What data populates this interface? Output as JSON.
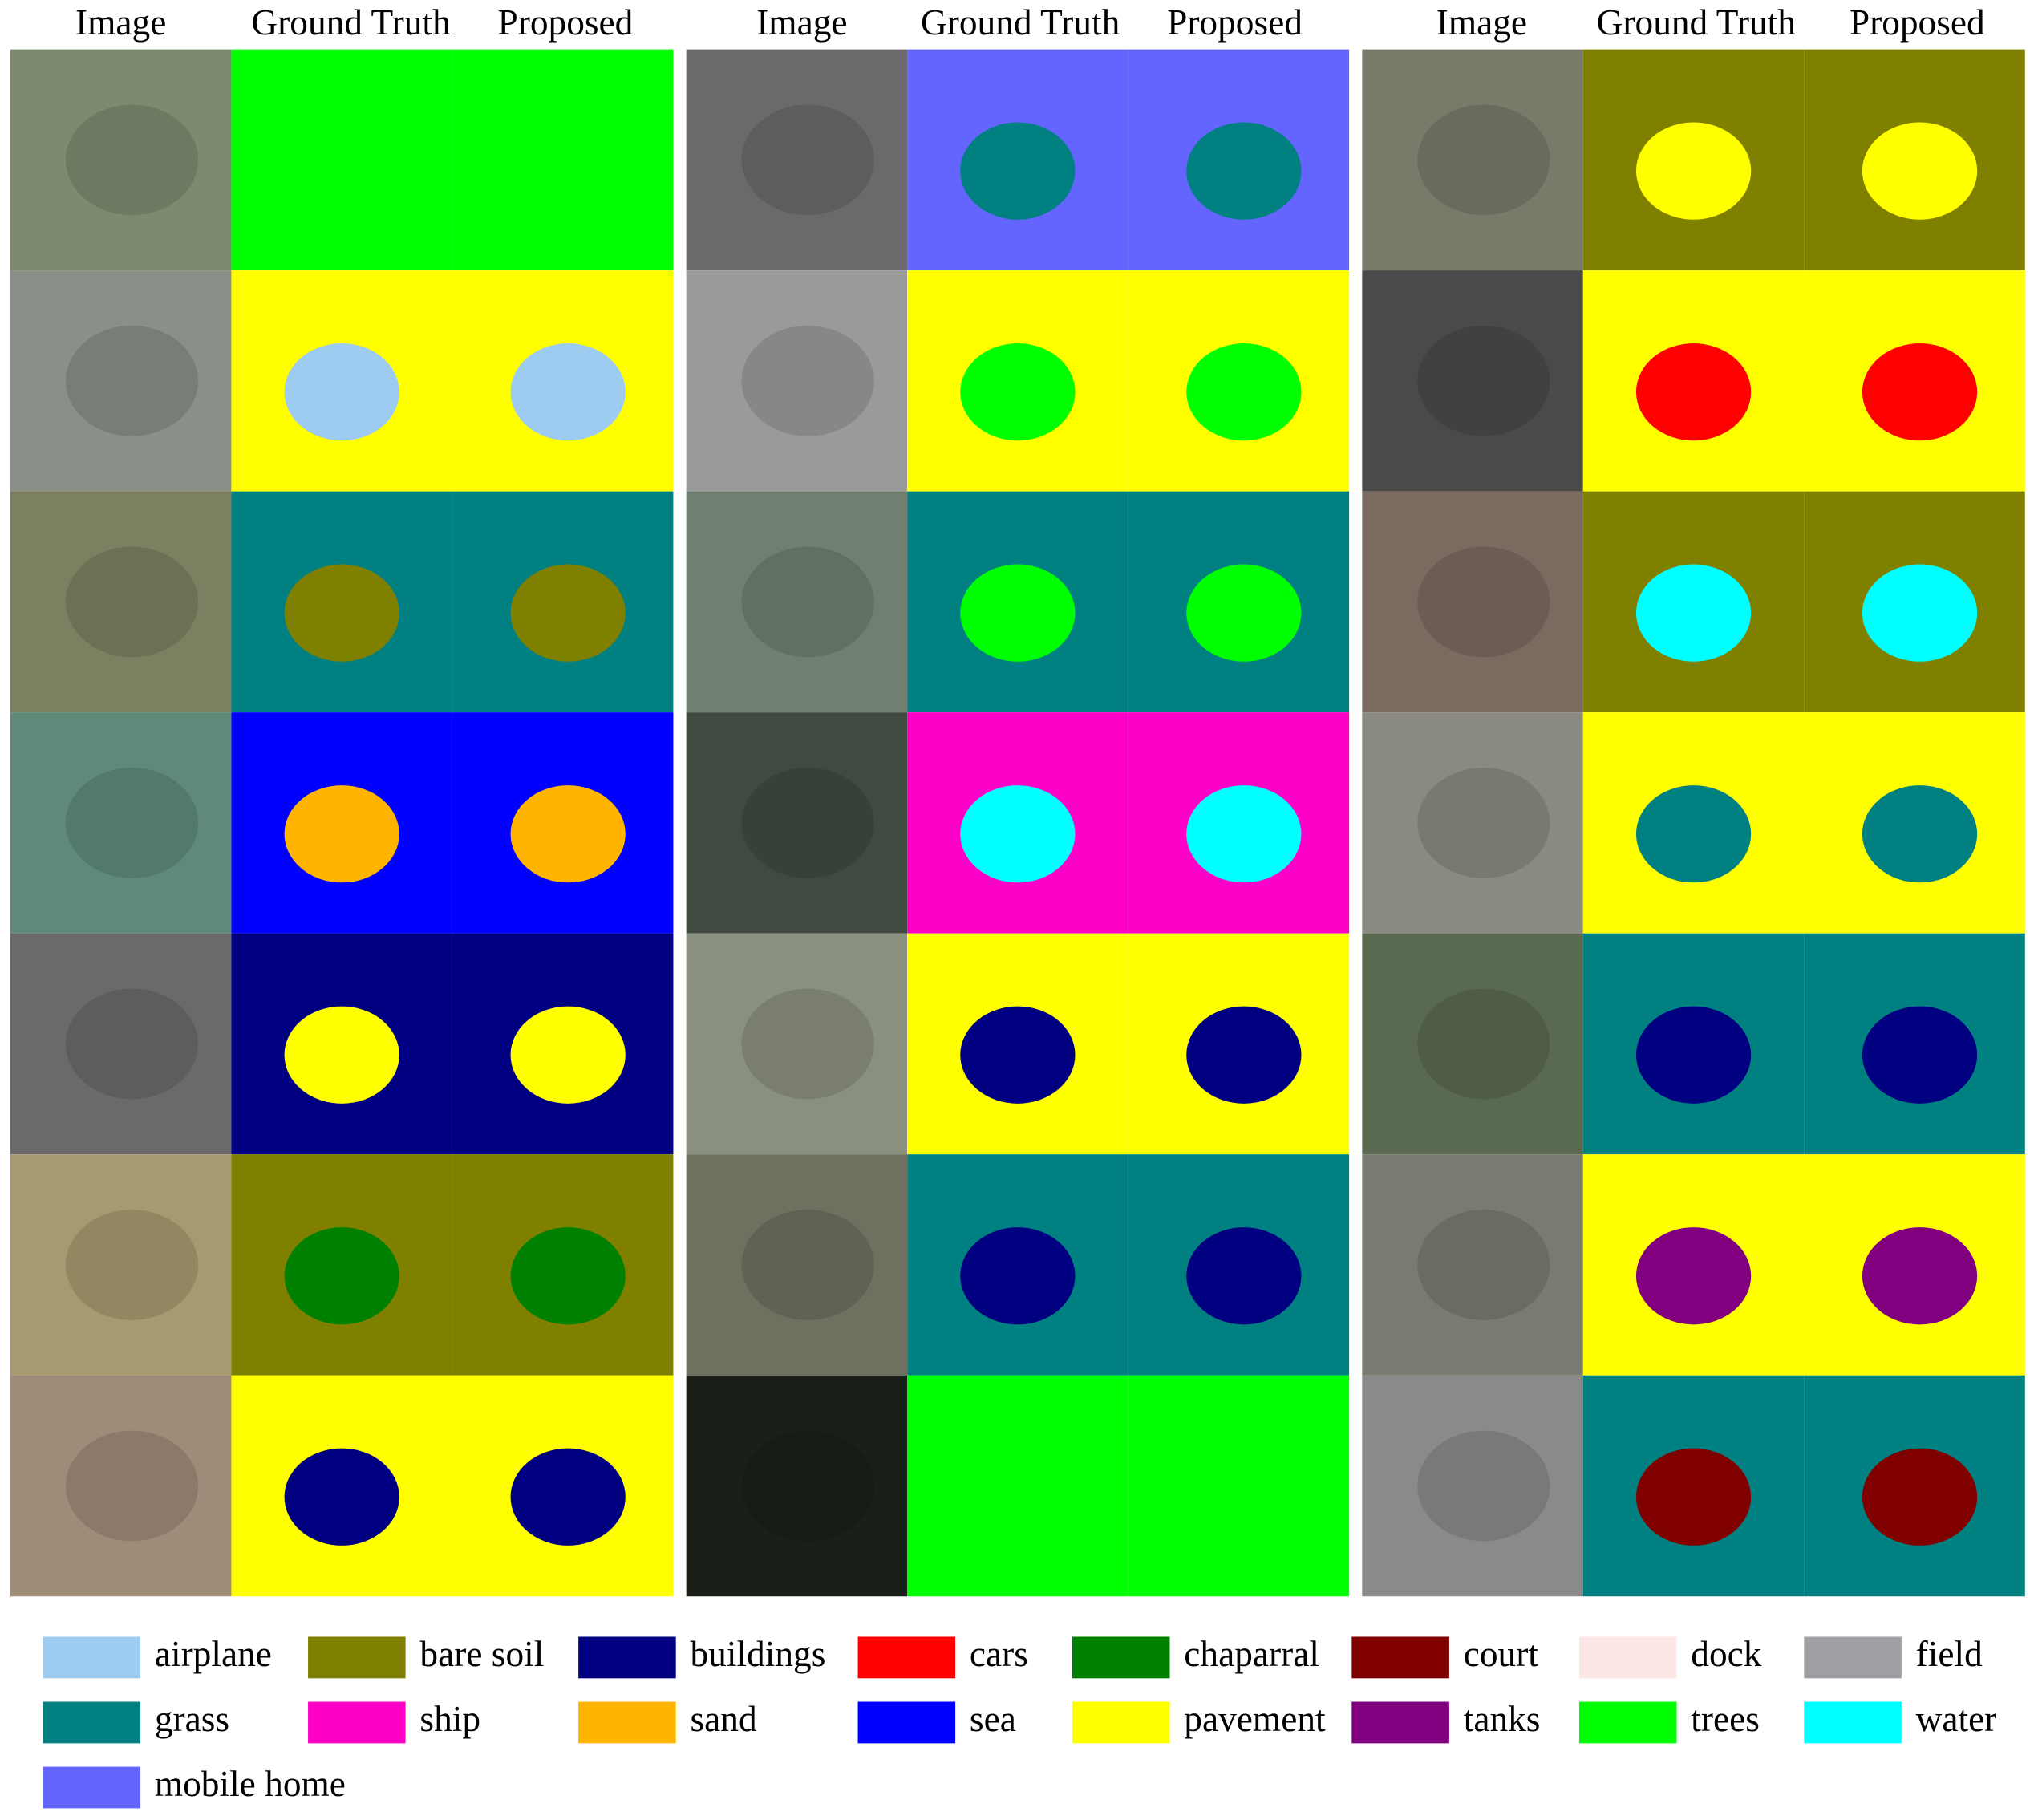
{
  "headers": [
    "Image",
    "Ground Truth",
    "Proposed",
    "Image",
    "Ground Truth",
    "Proposed",
    "Image",
    "Ground Truth",
    "Proposed"
  ],
  "legend": {
    "items": [
      {
        "label": "airplane",
        "color": "#9ecbf0"
      },
      {
        "label": "bare soil",
        "color": "#808000"
      },
      {
        "label": "buildings",
        "color": "#000080"
      },
      {
        "label": "cars",
        "color": "#ff0000"
      },
      {
        "label": "chaparral",
        "color": "#008000"
      },
      {
        "label": "court",
        "color": "#800000"
      },
      {
        "label": "dock",
        "color": "#fce6e6"
      },
      {
        "label": "field",
        "color": "#a0a0a4"
      },
      {
        "label": "grass",
        "color": "#008080"
      },
      {
        "label": "ship",
        "color": "#ff00c8"
      },
      {
        "label": "sand",
        "color": "#ffb400"
      },
      {
        "label": "sea",
        "color": "#0000ff"
      },
      {
        "label": "pavement",
        "color": "#ffff00"
      },
      {
        "label": "tanks",
        "color": "#800080"
      },
      {
        "label": "trees",
        "color": "#00ff00"
      },
      {
        "label": "water",
        "color": "#00ffff"
      },
      {
        "label": "mobile home",
        "color": "#6464ff"
      }
    ]
  }
}
